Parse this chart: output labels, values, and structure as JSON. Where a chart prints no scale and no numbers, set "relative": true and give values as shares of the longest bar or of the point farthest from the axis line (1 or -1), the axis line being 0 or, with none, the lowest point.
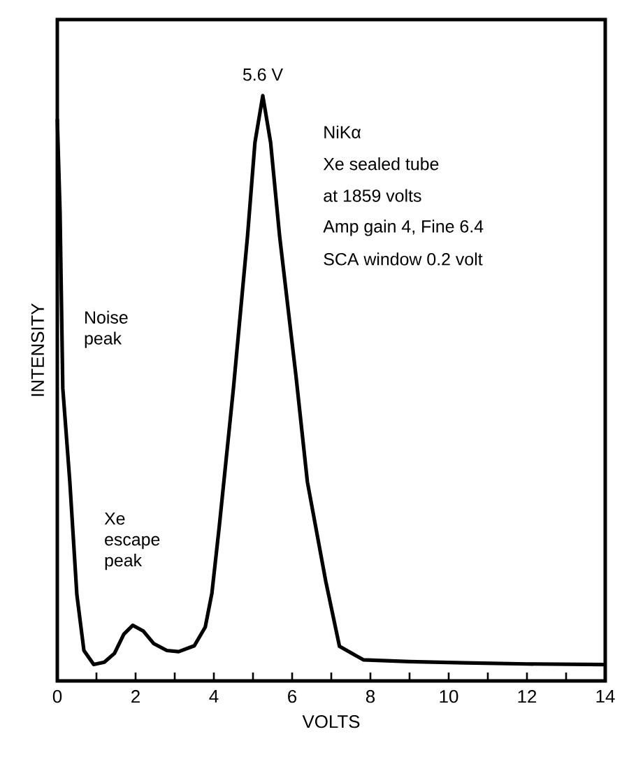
{
  "chart_data": {
    "type": "line",
    "relative": true,
    "xlabel": "VOLTS",
    "ylabel": "INTENSITY",
    "x": [
      0,
      0.07,
      0.14,
      0.32,
      0.5,
      0.68,
      0.93,
      1.2,
      1.46,
      1.7,
      1.93,
      2.2,
      2.46,
      2.8,
      3.1,
      3.5,
      3.78,
      3.95,
      4.14,
      4.5,
      4.86,
      5.05,
      5.25,
      5.45,
      5.68,
      6.1,
      6.39,
      6.86,
      7.21,
      7.82,
      9,
      10.4,
      12,
      14
    ],
    "values": [
      0.96,
      0.8,
      0.5,
      0.34,
      0.147,
      0.052,
      0.028,
      0.032,
      0.047,
      0.08,
      0.095,
      0.085,
      0.064,
      0.052,
      0.05,
      0.06,
      0.092,
      0.15,
      0.265,
      0.5,
      0.76,
      0.92,
      1.0,
      0.92,
      0.76,
      0.52,
      0.34,
      0.17,
      0.059,
      0.036,
      0.033,
      0.031,
      0.029,
      0.028
    ],
    "color": "#000000",
    "xlim": [
      0,
      14
    ],
    "xticks": [
      0,
      2,
      4,
      6,
      8,
      10,
      12,
      14
    ],
    "annotations": [
      "5.6 V",
      "NiKα",
      "Xe sealed tube",
      "at 1859 volts",
      "Amp gain 4, Fine 6.4",
      "SCA window 0.2 volt",
      "Noise peak",
      "Xe escape peak"
    ]
  }
}
